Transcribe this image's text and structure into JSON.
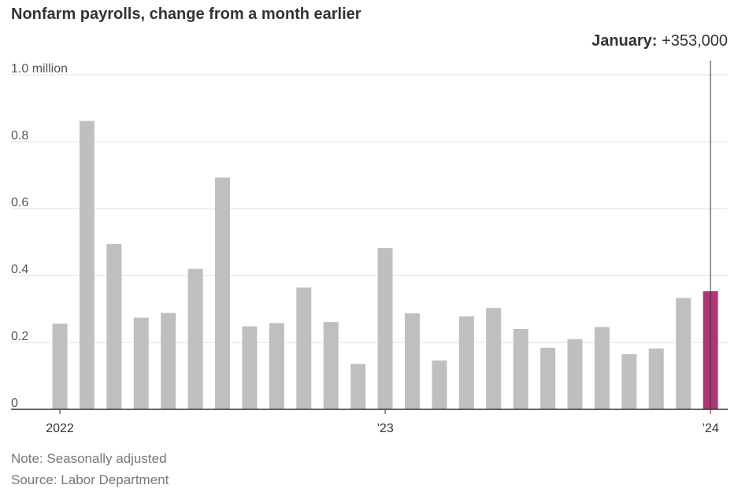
{
  "title": "Nonfarm payrolls, change from a month earlier",
  "callout": {
    "label": "January:",
    "value": "+353,000"
  },
  "footnotes": {
    "note": "Note: Seasonally adjusted",
    "source": "Source: Labor Department"
  },
  "colors": {
    "bar": "#bfbfbf",
    "highlight": "#b03575",
    "grid": "#e2e2e2",
    "axis": "#333333"
  },
  "chart_data": {
    "type": "bar",
    "title": "Nonfarm payrolls, change from a month earlier",
    "xlabel": "",
    "ylabel": "",
    "ylim": [
      0,
      1.0
    ],
    "unit": "million",
    "grid": true,
    "yticks": [
      {
        "value": 0,
        "label": "0"
      },
      {
        "value": 0.2,
        "label": "0.2"
      },
      {
        "value": 0.4,
        "label": "0.4"
      },
      {
        "value": 0.6,
        "label": "0.6"
      },
      {
        "value": 0.8,
        "label": "0.8"
      },
      {
        "value": 1.0,
        "label": "1.0 million"
      }
    ],
    "xticks": [
      {
        "index": 0,
        "label": "2022"
      },
      {
        "index": 12,
        "label": "’23"
      },
      {
        "index": 24,
        "label": "’24"
      }
    ],
    "categories": [
      "2022-01",
      "2022-02",
      "2022-03",
      "2022-04",
      "2022-05",
      "2022-06",
      "2022-07",
      "2022-08",
      "2022-09",
      "2022-10",
      "2022-11",
      "2022-12",
      "2023-01",
      "2023-02",
      "2023-03",
      "2023-04",
      "2023-05",
      "2023-06",
      "2023-07",
      "2023-08",
      "2023-09",
      "2023-10",
      "2023-11",
      "2023-12",
      "2024-01"
    ],
    "values": [
      0.256,
      0.862,
      0.494,
      0.274,
      0.288,
      0.42,
      0.693,
      0.248,
      0.258,
      0.364,
      0.261,
      0.136,
      0.482,
      0.287,
      0.146,
      0.278,
      0.303,
      0.24,
      0.184,
      0.21,
      0.246,
      0.165,
      0.182,
      0.333,
      0.353
    ],
    "highlight_index": 24
  }
}
